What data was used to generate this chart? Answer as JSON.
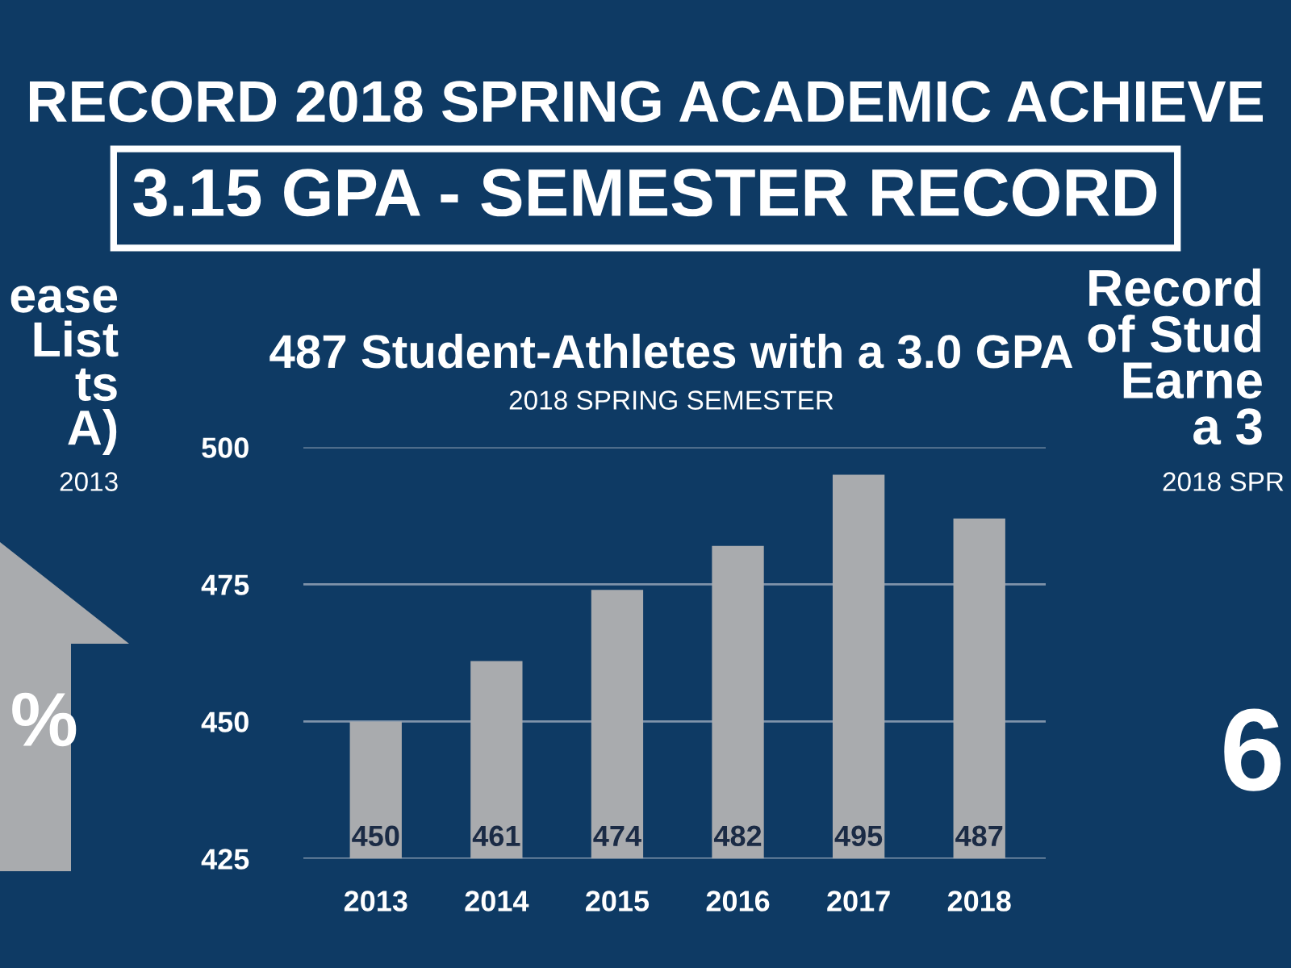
{
  "chart_data": {
    "type": "bar",
    "title": "487 Student-Athletes with a 3.0 GPA",
    "subtitle": "2018 SPRING SEMESTER",
    "categories": [
      "2013",
      "2014",
      "2015",
      "2016",
      "2017",
      "2018"
    ],
    "values": [
      450,
      461,
      474,
      482,
      495,
      487
    ],
    "color": "#a9abae",
    "ylim": [
      425,
      500
    ],
    "yticks": [
      425,
      450,
      475,
      500
    ],
    "grid": "y",
    "data_labels": true,
    "annotations": [
      "RECORD 2018 SPRING ACADEMIC ACHIEVE",
      "3.15 GPA - SEMESTER RECORD",
      "ease\nList\nts\nA)",
      "2013",
      "%",
      "Record\nof Stud\nEarne\na 3",
      "2018 SPR",
      "6"
    ]
  }
}
